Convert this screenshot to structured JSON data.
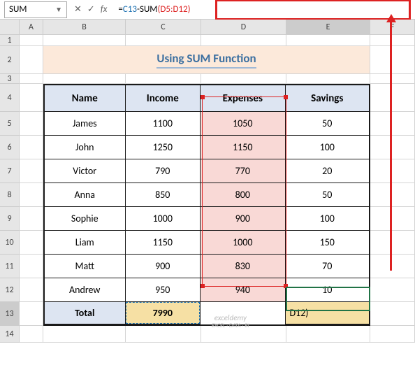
{
  "formulaBar": {
    "nameBox": "SUM",
    "fxLabel": "fx",
    "formula": {
      "equals": "=",
      "ref": "C13",
      "minus": "-SUM",
      "open": "(",
      "range": "D5:D12",
      "close": ")"
    }
  },
  "columns": [
    "A",
    "B",
    "C",
    "D",
    "E",
    "F"
  ],
  "rows": [
    "1",
    "2",
    "3",
    "4",
    "5",
    "6",
    "7",
    "8",
    "9",
    "10",
    "11",
    "12",
    "13",
    "14"
  ],
  "title": "Using SUM Function",
  "headers": {
    "name": "Name",
    "income": "Income",
    "expenses": "Expenses",
    "savings": "Savings"
  },
  "data": [
    {
      "name": "James",
      "income": "1100",
      "expenses": "1050",
      "savings": "50"
    },
    {
      "name": "John",
      "income": "1250",
      "expenses": "1150",
      "savings": "100"
    },
    {
      "name": "Victor",
      "income": "790",
      "expenses": "770",
      "savings": "20"
    },
    {
      "name": "Anna",
      "income": "850",
      "expenses": "800",
      "savings": "50"
    },
    {
      "name": "Sophie",
      "income": "1000",
      "expenses": "900",
      "savings": "100"
    },
    {
      "name": "Liam",
      "income": "1150",
      "expenses": "1000",
      "savings": "150"
    },
    {
      "name": "Matt",
      "income": "900",
      "expenses": "830",
      "savings": "70"
    },
    {
      "name": "Andrew",
      "income": "950",
      "expenses": "940",
      "savings": "10"
    }
  ],
  "total": {
    "label": "Total",
    "income": "7990",
    "savingsCell": "D12)"
  },
  "watermark": {
    "main": "exceldemy",
    "sub": "EXCEL · DATA · BI"
  },
  "colors": {
    "titleBg": "#fce9da",
    "titleText": "#3b6fa0",
    "headerBg": "#dde5f2",
    "expBg": "#f9d9d6",
    "totalHighlight": "#f6e0a4",
    "redBorder": "#d22",
    "blueRef": "#1a6fb0",
    "tblBorder": "#1a1a1a"
  }
}
